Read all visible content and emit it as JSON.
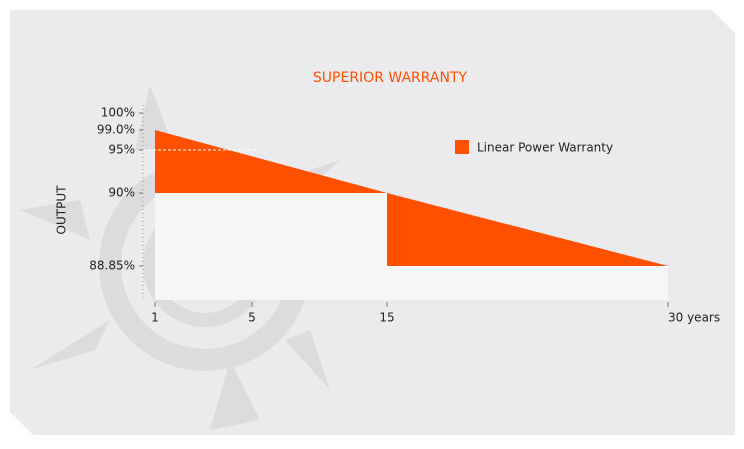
{
  "chart_data": {
    "type": "area",
    "title": "SUPERIOR WARRANTY",
    "y_label": "OUTPUT",
    "series": [
      {
        "name": "Linear Power Warranty",
        "color": "#ff5000",
        "x": [
          1,
          15,
          30
        ],
        "values": [
          99.0,
          90,
          88.85
        ]
      }
    ],
    "baseline": {
      "x": [
        1,
        15,
        15,
        30
      ],
      "values": [
        90,
        90,
        88.85,
        88.85
      ]
    },
    "guide": {
      "value": 95
    },
    "yticks": [
      {
        "value": 100,
        "label": "100%"
      },
      {
        "value": 99.0,
        "label": "99.0%"
      },
      {
        "value": 95,
        "label": "95%"
      },
      {
        "value": 90,
        "label": "90%"
      },
      {
        "value": 88.85,
        "label": "88.85%"
      }
    ],
    "xticks": [
      1,
      5,
      15,
      {
        "value": 30,
        "label": "30 years"
      }
    ]
  }
}
